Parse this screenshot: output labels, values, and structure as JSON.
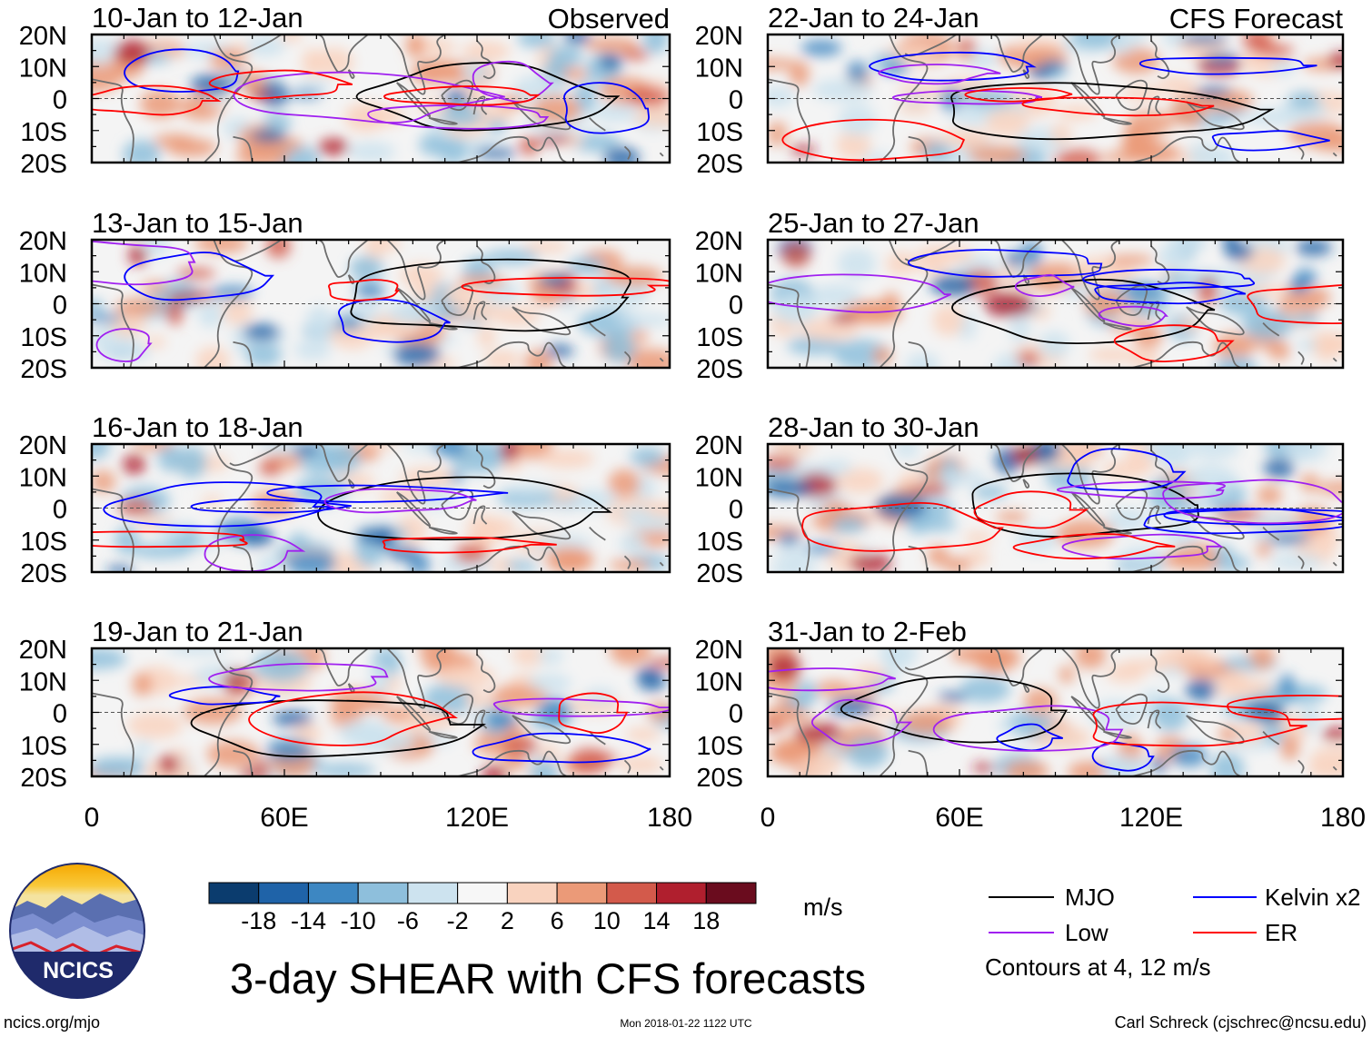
{
  "chart_data": {
    "type": "heatmap",
    "title": "3-day SHEAR with CFS forecasts",
    "units": "m/s",
    "region": {
      "lon_range": [
        0,
        180
      ],
      "lat_range": [
        -20,
        20
      ]
    },
    "lat_ticks": [
      "20N",
      "10N",
      "0",
      "10S",
      "20S"
    ],
    "lon_ticks": [
      "0",
      "60E",
      "120E",
      "180"
    ],
    "columns": [
      {
        "label": "Observed",
        "panels": [
          {
            "period": "10-Jan to 12-Jan"
          },
          {
            "period": "13-Jan to 15-Jan"
          },
          {
            "period": "16-Jan to 18-Jan"
          },
          {
            "period": "19-Jan to 21-Jan"
          }
        ]
      },
      {
        "label": "CFS Forecast",
        "panels": [
          {
            "period": "22-Jan to 24-Jan"
          },
          {
            "period": "25-Jan to 27-Jan"
          },
          {
            "period": "28-Jan to 30-Jan"
          },
          {
            "period": "31-Jan to 2-Feb"
          }
        ]
      }
    ],
    "colorbar": {
      "levels": [
        -18,
        -14,
        -10,
        -6,
        -2,
        2,
        6,
        10,
        14,
        18
      ],
      "level_labels": [
        "-18",
        "-14",
        "-10",
        "-6",
        "-2",
        "2",
        "6",
        "10",
        "14",
        "18"
      ],
      "colors": [
        "#0b3c6e",
        "#1f63a8",
        "#3d87c2",
        "#8ebfdc",
        "#cde3ef",
        "#f7f7f7",
        "#f9d3bf",
        "#eb9a78",
        "#d35a4b",
        "#b01f2e",
        "#6a0c1e"
      ]
    },
    "legend": [
      {
        "label": "MJO",
        "color": "#000000"
      },
      {
        "label": "Kelvin x2",
        "color": "#0000ff"
      },
      {
        "label": "Low",
        "color": "#a020f0"
      },
      {
        "label": "ER",
        "color": "#ff0000"
      }
    ],
    "contour_note": "Contours at 4, 12 m/s"
  },
  "footer": {
    "logo_text": "NCICS",
    "site": "ncics.org/mjo",
    "timestamp": "Mon 2018-01-22 1122 UTC",
    "credit": "Carl Schreck (cjschrec@ncsu.edu)"
  }
}
